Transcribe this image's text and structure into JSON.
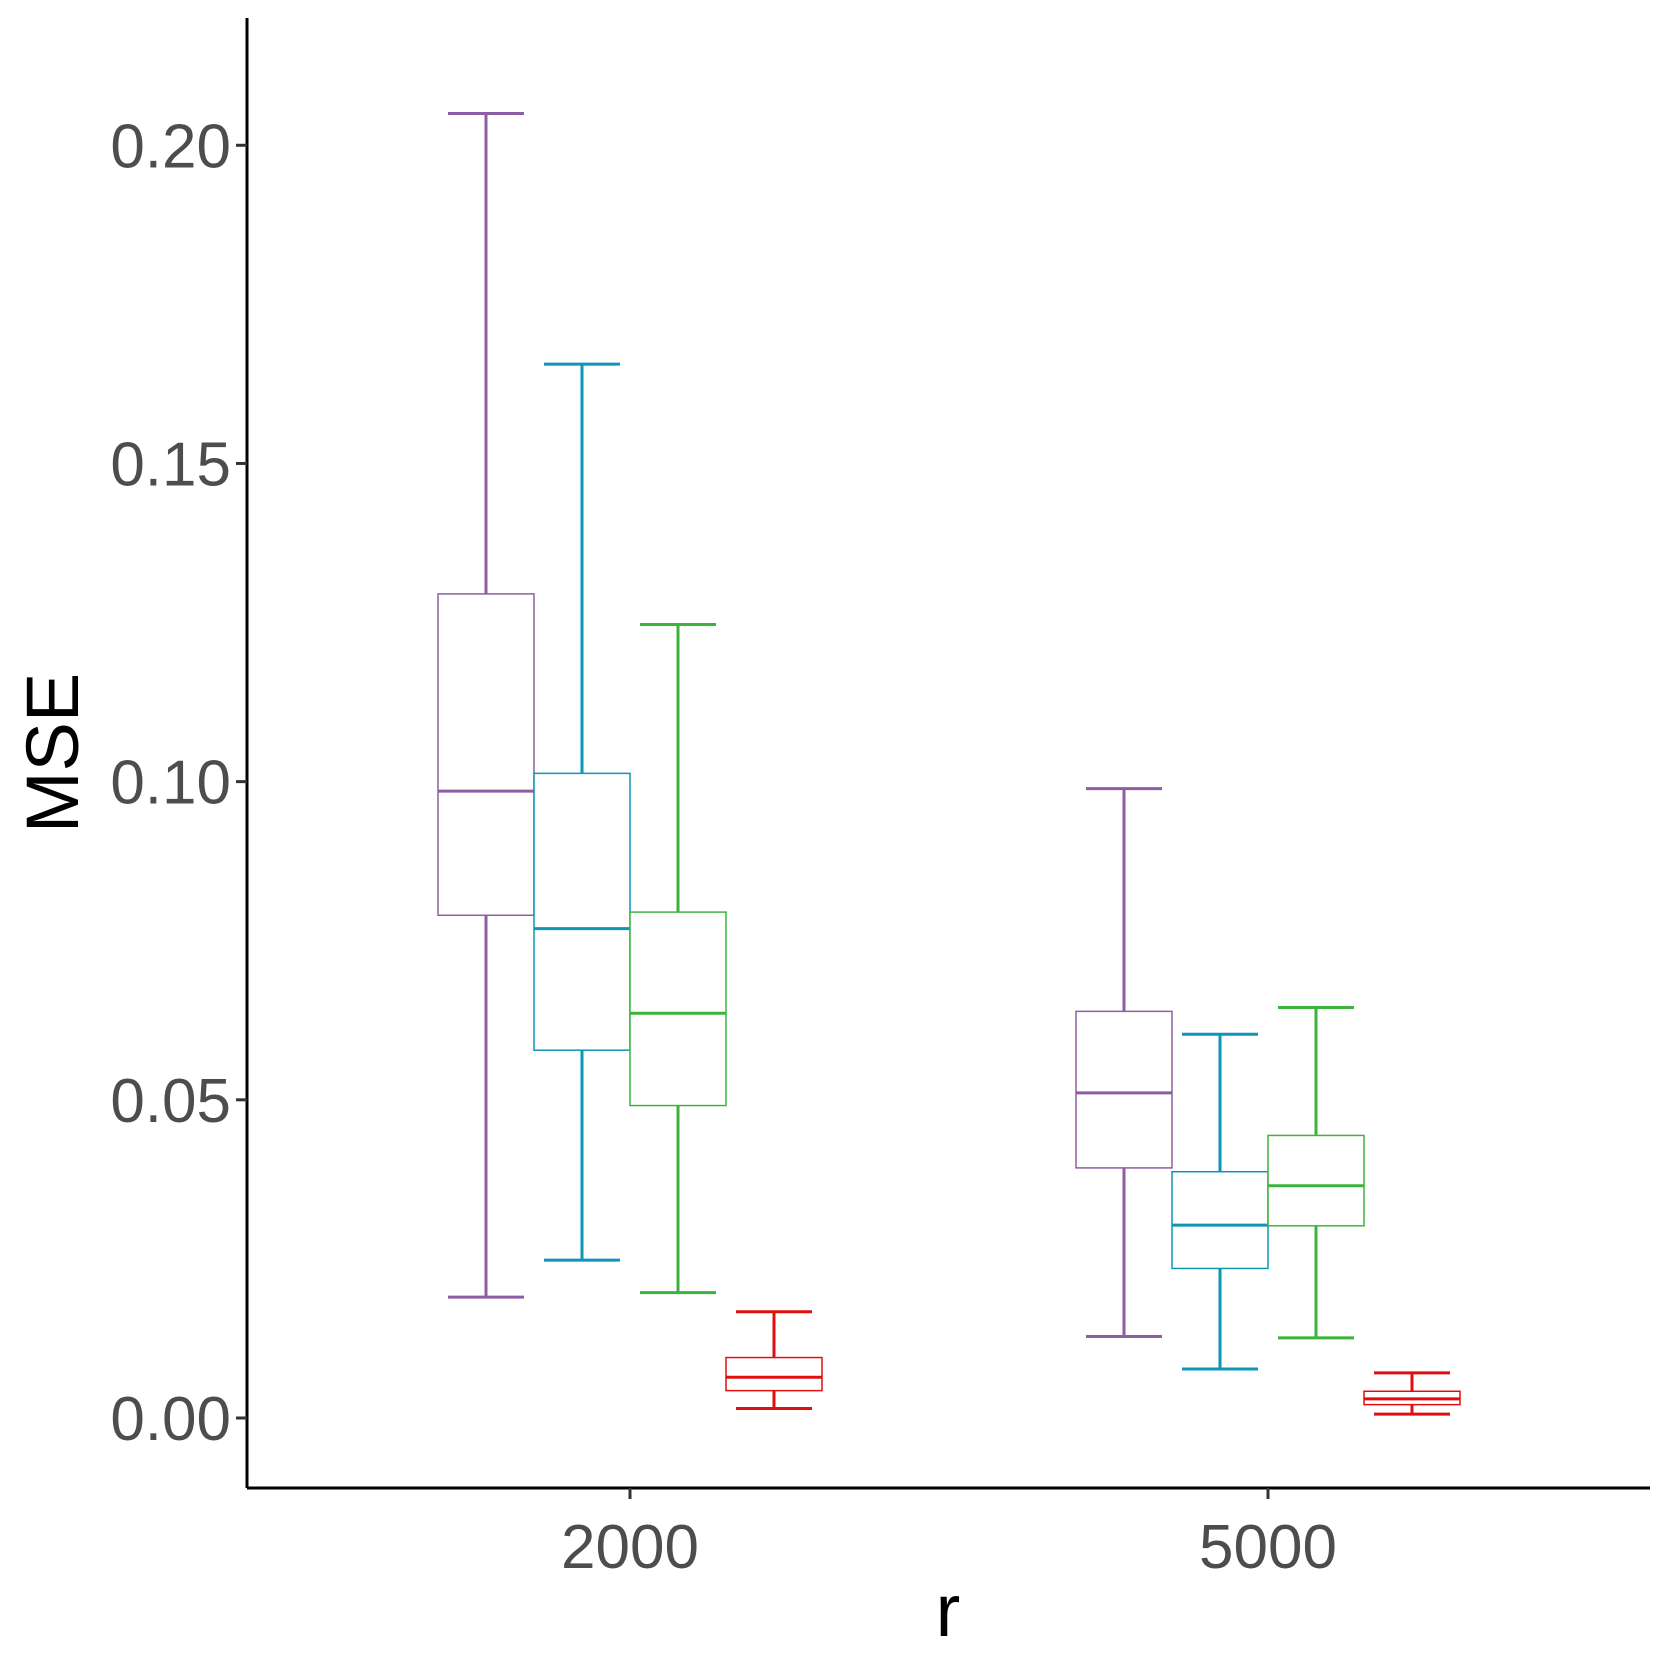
{
  "chart_data": {
    "type": "boxplot",
    "xlabel": "r",
    "ylabel": "MSE",
    "categories": [
      "2000",
      "5000"
    ],
    "ylim": [
      -0.011,
      0.22
    ],
    "yticks": [
      "0.00",
      "0.05",
      "0.10",
      "0.15",
      "0.20"
    ],
    "ytick_values": [
      0.0,
      0.05,
      0.1,
      0.15,
      0.2
    ],
    "grid": false,
    "legend": "none",
    "series": [
      {
        "color": "#8e5ea2",
        "boxes": [
          {
            "category": "2000",
            "min": 0.019,
            "q1": 0.079,
            "median": 0.0985,
            "q3": 0.1295,
            "max": 0.205
          },
          {
            "category": "5000",
            "min": 0.0128,
            "q1": 0.0393,
            "median": 0.0511,
            "q3": 0.0639,
            "max": 0.0989
          }
        ]
      },
      {
        "color": "#0f95b5",
        "boxes": [
          {
            "category": "2000",
            "min": 0.0248,
            "q1": 0.0578,
            "median": 0.0769,
            "q3": 0.1013,
            "max": 0.1656
          },
          {
            "category": "5000",
            "min": 0.0077,
            "q1": 0.0235,
            "median": 0.0303,
            "q3": 0.0387,
            "max": 0.0603
          }
        ]
      },
      {
        "color": "#3cb43c",
        "boxes": [
          {
            "category": "2000",
            "min": 0.0197,
            "q1": 0.0491,
            "median": 0.0636,
            "q3": 0.0795,
            "max": 0.1247
          },
          {
            "category": "5000",
            "min": 0.0126,
            "q1": 0.0302,
            "median": 0.0365,
            "q3": 0.0444,
            "max": 0.0645
          }
        ]
      },
      {
        "color": "#e01010",
        "boxes": [
          {
            "category": "2000",
            "min": 0.0015,
            "q1": 0.0043,
            "median": 0.0064,
            "q3": 0.0095,
            "max": 0.0167
          },
          {
            "category": "5000",
            "min": 0.0006,
            "q1": 0.0021,
            "median": 0.003,
            "q3": 0.0042,
            "max": 0.0071
          }
        ]
      }
    ]
  }
}
